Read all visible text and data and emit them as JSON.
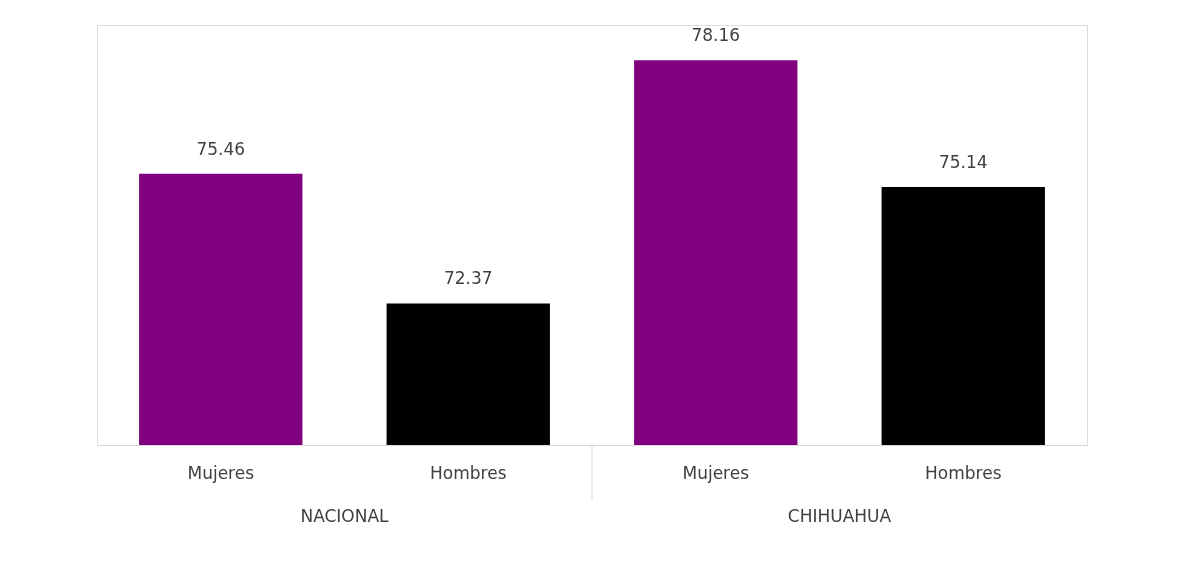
{
  "chart_data": {
    "type": "bar",
    "categories": [
      "Mujeres",
      "Hombres",
      "Mujeres",
      "Hombres"
    ],
    "values": [
      75.46,
      72.37,
      78.16,
      75.14
    ],
    "colors": [
      "#800080",
      "#000000",
      "#800080",
      "#000000"
    ],
    "ylim": [
      69,
      79
    ],
    "data_labels": true,
    "grid": false,
    "annotations": [
      "NACIONAL",
      "CHIHUAHUA"
    ]
  }
}
